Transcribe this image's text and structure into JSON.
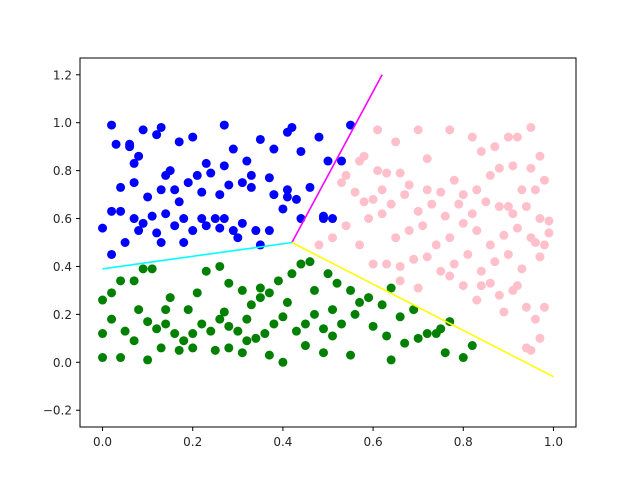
{
  "chart_data": {
    "type": "scatter",
    "title": "",
    "xlabel": "",
    "ylabel": "",
    "xlim": [
      -0.05,
      1.05
    ],
    "ylim": [
      -0.27,
      1.27
    ],
    "xticks": [
      "0.0",
      "0.2",
      "0.4",
      "0.6",
      "0.8",
      "1.0"
    ],
    "yticks": [
      "−0.2",
      "0.0",
      "0.2",
      "0.4",
      "0.6",
      "0.8",
      "1.0",
      "1.2"
    ],
    "grid": false,
    "legend": "none",
    "series": [
      {
        "color": "#0000ff",
        "points": [
          [
            0.02,
            0.99
          ],
          [
            0.03,
            0.91
          ],
          [
            0.06,
            0.91
          ],
          [
            0.07,
            0.83
          ],
          [
            0.09,
            0.97
          ],
          [
            0.12,
            0.95
          ],
          [
            0.13,
            0.98
          ],
          [
            0.14,
            0.78
          ],
          [
            0.17,
            0.92
          ],
          [
            0.2,
            0.94
          ],
          [
            0.23,
            0.83
          ],
          [
            0.27,
            0.99
          ],
          [
            0.29,
            0.89
          ],
          [
            0.32,
            0.84
          ],
          [
            0.35,
            0.93
          ],
          [
            0.38,
            0.89
          ],
          [
            0.41,
            0.96
          ],
          [
            0.42,
            0.98
          ],
          [
            0.44,
            0.88
          ],
          [
            0.48,
            0.94
          ],
          [
            0.55,
            0.99
          ],
          [
            0.04,
            0.73
          ],
          [
            0.07,
            0.75
          ],
          [
            0.1,
            0.69
          ],
          [
            0.13,
            0.72
          ],
          [
            0.16,
            0.72
          ],
          [
            0.19,
            0.75
          ],
          [
            0.21,
            0.78
          ],
          [
            0.22,
            0.71
          ],
          [
            0.24,
            0.79
          ],
          [
            0.26,
            0.7
          ],
          [
            0.28,
            0.74
          ],
          [
            0.31,
            0.75
          ],
          [
            0.33,
            0.78
          ],
          [
            0.37,
            0.77
          ],
          [
            0.41,
            0.72
          ],
          [
            0.43,
            0.68
          ],
          [
            0.46,
            0.73
          ],
          [
            0.49,
            0.6
          ],
          [
            0.53,
            0.84
          ],
          [
            0.02,
            0.63
          ],
          [
            0.04,
            0.63
          ],
          [
            0.07,
            0.6
          ],
          [
            0.09,
            0.58
          ],
          [
            0.12,
            0.54
          ],
          [
            0.14,
            0.62
          ],
          [
            0.16,
            0.57
          ],
          [
            0.18,
            0.6
          ],
          [
            0.2,
            0.55
          ],
          [
            0.23,
            0.57
          ],
          [
            0.25,
            0.6
          ],
          [
            0.27,
            0.6
          ],
          [
            0.29,
            0.55
          ],
          [
            0.31,
            0.58
          ],
          [
            0.34,
            0.55
          ],
          [
            0.37,
            0.55
          ],
          [
            0.4,
            0.64
          ],
          [
            0.44,
            0.6
          ],
          [
            0.0,
            0.56
          ],
          [
            0.05,
            0.5
          ],
          [
            0.13,
            0.5
          ],
          [
            0.18,
            0.5
          ],
          [
            0.26,
            0.56
          ],
          [
            0.3,
            0.52
          ],
          [
            0.35,
            0.49
          ],
          [
            0.02,
            0.45
          ],
          [
            0.08,
            0.55
          ],
          [
            0.22,
            0.6
          ],
          [
            0.11,
            0.61
          ],
          [
            0.38,
            0.7
          ],
          [
            0.06,
            0.9
          ],
          [
            0.15,
            0.8
          ],
          [
            0.27,
            0.82
          ],
          [
            0.33,
            0.73
          ],
          [
            0.41,
            0.69
          ],
          [
            0.49,
            0.61
          ],
          [
            0.51,
            0.6
          ],
          [
            0.5,
            0.84
          ],
          [
            0.17,
            0.67
          ],
          [
            0.08,
            0.86
          ]
        ]
      },
      {
        "color": "#ffc0cb",
        "points": [
          [
            0.61,
            0.97
          ],
          [
            0.65,
            0.92
          ],
          [
            0.7,
            0.97
          ],
          [
            0.72,
            0.85
          ],
          [
            0.77,
            0.97
          ],
          [
            0.82,
            0.94
          ],
          [
            0.84,
            0.88
          ],
          [
            0.87,
            0.9
          ],
          [
            0.9,
            0.94
          ],
          [
            0.92,
            0.94
          ],
          [
            0.95,
            0.98
          ],
          [
            0.97,
            0.86
          ],
          [
            0.58,
            0.86
          ],
          [
            0.61,
            0.8
          ],
          [
            0.63,
            0.79
          ],
          [
            0.66,
            0.79
          ],
          [
            0.68,
            0.74
          ],
          [
            0.72,
            0.72
          ],
          [
            0.75,
            0.71
          ],
          [
            0.78,
            0.76
          ],
          [
            0.8,
            0.7
          ],
          [
            0.83,
            0.72
          ],
          [
            0.86,
            0.78
          ],
          [
            0.88,
            0.81
          ],
          [
            0.9,
            0.65
          ],
          [
            0.93,
            0.72
          ],
          [
            0.95,
            0.81
          ],
          [
            0.98,
            0.76
          ],
          [
            0.53,
            0.75
          ],
          [
            0.56,
            0.71
          ],
          [
            0.6,
            0.68
          ],
          [
            0.62,
            0.62
          ],
          [
            0.64,
            0.66
          ],
          [
            0.67,
            0.7
          ],
          [
            0.7,
            0.63
          ],
          [
            0.73,
            0.66
          ],
          [
            0.76,
            0.61
          ],
          [
            0.79,
            0.66
          ],
          [
            0.82,
            0.62
          ],
          [
            0.85,
            0.67
          ],
          [
            0.88,
            0.65
          ],
          [
            0.91,
            0.62
          ],
          [
            0.94,
            0.65
          ],
          [
            0.97,
            0.6
          ],
          [
            0.99,
            0.59
          ],
          [
            0.48,
            0.49
          ],
          [
            0.51,
            0.52
          ],
          [
            0.54,
            0.57
          ],
          [
            0.57,
            0.49
          ],
          [
            0.6,
            0.41
          ],
          [
            0.63,
            0.41
          ],
          [
            0.66,
            0.4
          ],
          [
            0.69,
            0.43
          ],
          [
            0.72,
            0.44
          ],
          [
            0.75,
            0.38
          ],
          [
            0.78,
            0.41
          ],
          [
            0.81,
            0.45
          ],
          [
            0.84,
            0.38
          ],
          [
            0.87,
            0.42
          ],
          [
            0.9,
            0.45
          ],
          [
            0.93,
            0.39
          ],
          [
            0.96,
            0.5
          ],
          [
            0.99,
            0.54
          ],
          [
            0.86,
            0.33
          ],
          [
            0.88,
            0.28
          ],
          [
            0.91,
            0.3
          ],
          [
            0.94,
            0.23
          ],
          [
            0.96,
            0.18
          ],
          [
            0.98,
            0.23
          ],
          [
            0.95,
            0.05
          ],
          [
            0.94,
            0.06
          ],
          [
            0.97,
            0.1
          ],
          [
            0.83,
            0.26
          ],
          [
            0.89,
            0.21
          ],
          [
            0.66,
            0.34
          ],
          [
            0.7,
            0.31
          ],
          [
            0.77,
            0.36
          ],
          [
            0.8,
            0.32
          ],
          [
            0.84,
            0.32
          ],
          [
            0.92,
            0.32
          ],
          [
            0.97,
            0.44
          ],
          [
            0.54,
            0.78
          ],
          [
            0.57,
            0.84
          ],
          [
            0.59,
            0.6
          ],
          [
            0.65,
            0.52
          ],
          [
            0.68,
            0.55
          ],
          [
            0.71,
            0.57
          ],
          [
            0.74,
            0.49
          ],
          [
            0.77,
            0.52
          ],
          [
            0.8,
            0.58
          ],
          [
            0.83,
            0.55
          ],
          [
            0.86,
            0.49
          ],
          [
            0.89,
            0.53
          ],
          [
            0.92,
            0.56
          ],
          [
            0.95,
            0.52
          ],
          [
            0.98,
            0.49
          ],
          [
            0.58,
            0.67
          ],
          [
            0.62,
            0.72
          ],
          [
            0.96,
            0.72
          ],
          [
            0.91,
            0.82
          ]
        ]
      },
      {
        "color": "#008000",
        "points": [
          [
            0.0,
            0.26
          ],
          [
            0.02,
            0.29
          ],
          [
            0.04,
            0.34
          ],
          [
            0.07,
            0.34
          ],
          [
            0.09,
            0.39
          ],
          [
            0.11,
            0.39
          ],
          [
            0.14,
            0.22
          ],
          [
            0.15,
            0.27
          ],
          [
            0.19,
            0.22
          ],
          [
            0.21,
            0.29
          ],
          [
            0.23,
            0.38
          ],
          [
            0.26,
            0.4
          ],
          [
            0.28,
            0.33
          ],
          [
            0.31,
            0.3
          ],
          [
            0.33,
            0.24
          ],
          [
            0.35,
            0.31
          ],
          [
            0.37,
            0.29
          ],
          [
            0.39,
            0.34
          ],
          [
            0.42,
            0.37
          ],
          [
            0.44,
            0.41
          ],
          [
            0.46,
            0.42
          ],
          [
            0.5,
            0.37
          ],
          [
            0.52,
            0.33
          ],
          [
            0.55,
            0.3
          ],
          [
            0.57,
            0.25
          ],
          [
            0.59,
            0.27
          ],
          [
            0.62,
            0.24
          ],
          [
            0.64,
            0.31
          ],
          [
            0.66,
            0.19
          ],
          [
            0.69,
            0.22
          ],
          [
            0.72,
            0.12
          ],
          [
            0.75,
            0.14
          ],
          [
            0.77,
            0.17
          ],
          [
            0.0,
            0.12
          ],
          [
            0.02,
            0.18
          ],
          [
            0.05,
            0.13
          ],
          [
            0.08,
            0.22
          ],
          [
            0.1,
            0.17
          ],
          [
            0.12,
            0.14
          ],
          [
            0.16,
            0.12
          ],
          [
            0.18,
            0.09
          ],
          [
            0.2,
            0.12
          ],
          [
            0.22,
            0.16
          ],
          [
            0.24,
            0.13
          ],
          [
            0.26,
            0.18
          ],
          [
            0.28,
            0.15
          ],
          [
            0.3,
            0.13
          ],
          [
            0.32,
            0.09
          ],
          [
            0.34,
            0.1
          ],
          [
            0.36,
            0.12
          ],
          [
            0.38,
            0.16
          ],
          [
            0.4,
            0.19
          ],
          [
            0.43,
            0.13
          ],
          [
            0.45,
            0.16
          ],
          [
            0.47,
            0.2
          ],
          [
            0.49,
            0.14
          ],
          [
            0.51,
            0.11
          ],
          [
            0.53,
            0.16
          ],
          [
            0.56,
            0.2
          ],
          [
            0.6,
            0.15
          ],
          [
            0.63,
            0.11
          ],
          [
            0.67,
            0.08
          ],
          [
            0.7,
            0.1
          ],
          [
            0.74,
            0.12
          ],
          [
            0.0,
            0.02
          ],
          [
            0.04,
            0.02
          ],
          [
            0.07,
            0.09
          ],
          [
            0.1,
            0.01
          ],
          [
            0.13,
            0.06
          ],
          [
            0.17,
            0.05
          ],
          [
            0.2,
            0.06
          ],
          [
            0.25,
            0.05
          ],
          [
            0.28,
            0.06
          ],
          [
            0.31,
            0.04
          ],
          [
            0.37,
            0.03
          ],
          [
            0.4,
            0.0
          ],
          [
            0.45,
            0.07
          ],
          [
            0.49,
            0.04
          ],
          [
            0.55,
            0.03
          ],
          [
            0.64,
            0.01
          ],
          [
            0.76,
            0.04
          ],
          [
            0.8,
            0.02
          ],
          [
            0.82,
            0.07
          ],
          [
            0.27,
            0.21
          ],
          [
            0.32,
            0.18
          ],
          [
            0.35,
            0.27
          ],
          [
            0.41,
            0.25
          ],
          [
            0.47,
            0.3
          ],
          [
            0.51,
            0.22
          ],
          [
            0.14,
            0.16
          ]
        ]
      }
    ],
    "lines": [
      {
        "color": "#ff00ff",
        "points": [
          [
            0.42,
            0.5
          ],
          [
            0.62,
            1.2
          ]
        ]
      },
      {
        "color": "#00ffff",
        "points": [
          [
            0.42,
            0.5
          ],
          [
            0.0,
            0.39
          ]
        ]
      },
      {
        "color": "#ffff00",
        "points": [
          [
            0.42,
            0.5
          ],
          [
            1.0,
            -0.06
          ]
        ]
      }
    ]
  }
}
